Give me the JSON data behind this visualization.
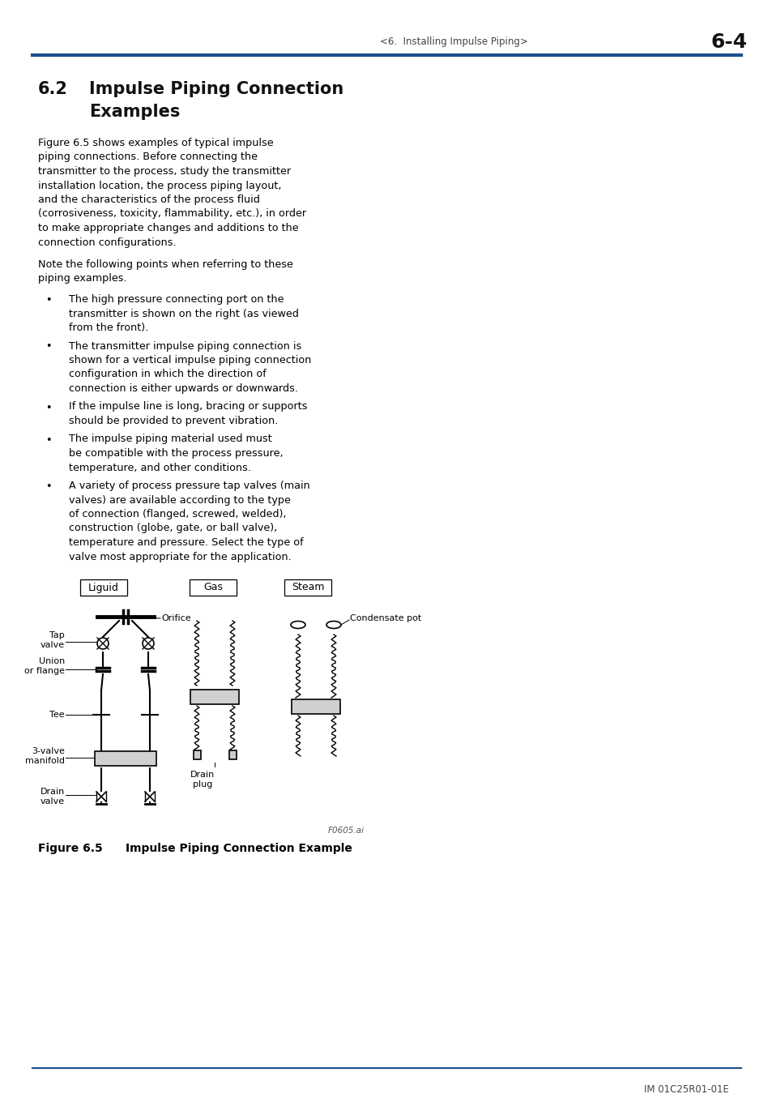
{
  "page_header_left": "<6.  Installing Impulse Piping>",
  "page_header_right": "6-4",
  "header_line_color": "#1a4f8a",
  "section_number": "6.2",
  "section_title_line1": "Impulse Piping Connection",
  "section_title_line2": "Examples",
  "body_para1_lines": [
    "Figure 6.5 shows examples of typical impulse",
    "piping connections. Before connecting the",
    "transmitter to the process, study the transmitter",
    "installation location, the process piping layout,",
    "and the characteristics of the process fluid",
    "(corrosiveness, toxicity, flammability, etc.), in order",
    "to make appropriate changes and additions to the",
    "connection configurations."
  ],
  "body_para2_lines": [
    "Note the following points when referring to these",
    "piping examples."
  ],
  "bullets": [
    [
      "The high pressure connecting port on the",
      "transmitter is shown on the right (as viewed",
      "from the front)."
    ],
    [
      "The transmitter impulse piping connection is",
      "shown for a vertical impulse piping connection",
      "configuration in which the direction of",
      "connection is either upwards or downwards."
    ],
    [
      "If the impulse line is long, bracing or supports",
      "should be provided to prevent vibration."
    ],
    [
      "The impulse piping material used must",
      "be compatible with the process pressure,",
      "temperature, and other conditions."
    ],
    [
      "A variety of process pressure tap valves (main",
      "valves) are available according to the type",
      "of connection (flanged, screwed, welded),",
      "construction (globe, gate, or ball valve),",
      "temperature and pressure. Select the type of",
      "valve most appropriate for the application."
    ]
  ],
  "box_labels": [
    "Liguid",
    "Gas",
    "Steam"
  ],
  "fig_label_left": [
    "Tap\nvalve",
    "Union\nor flange",
    "Tee",
    "3-valve\nmanifold",
    "Drain\nvalve"
  ],
  "fig_label_center": "Orifice",
  "fig_label_center2": "Drain\nplug",
  "fig_label_right": "Condensate pot",
  "figure_id": "F0605.ai",
  "figure_caption_num": "Figure 6.5",
  "figure_caption_text": "Impulse Piping Connection Example",
  "footer_line_color": "#1a4f8a",
  "footer_text": "IM 01C25R01-01E",
  "bg_color": "#ffffff",
  "text_color": "#000000"
}
